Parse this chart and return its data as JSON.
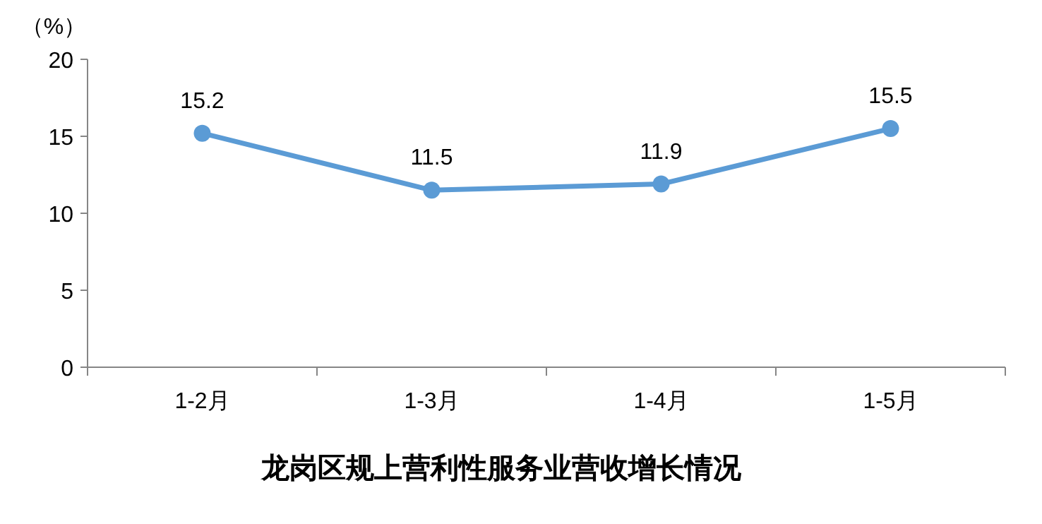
{
  "chart_data": {
    "type": "line",
    "title": "龙岗区规上营利性服务业营收增长情况",
    "ylabel": "（%）",
    "categories": [
      "1-2月",
      "1-3月",
      "1-4月",
      "1-5月"
    ],
    "series": [
      {
        "color": "#5b9bd5",
        "values": [
          15.2,
          11.5,
          11.9,
          15.5
        ]
      }
    ],
    "ylim": [
      0,
      20
    ],
    "yticks": [
      0,
      5,
      10,
      15,
      20
    ],
    "data_labels": true,
    "marker": "circle",
    "grid": false
  }
}
